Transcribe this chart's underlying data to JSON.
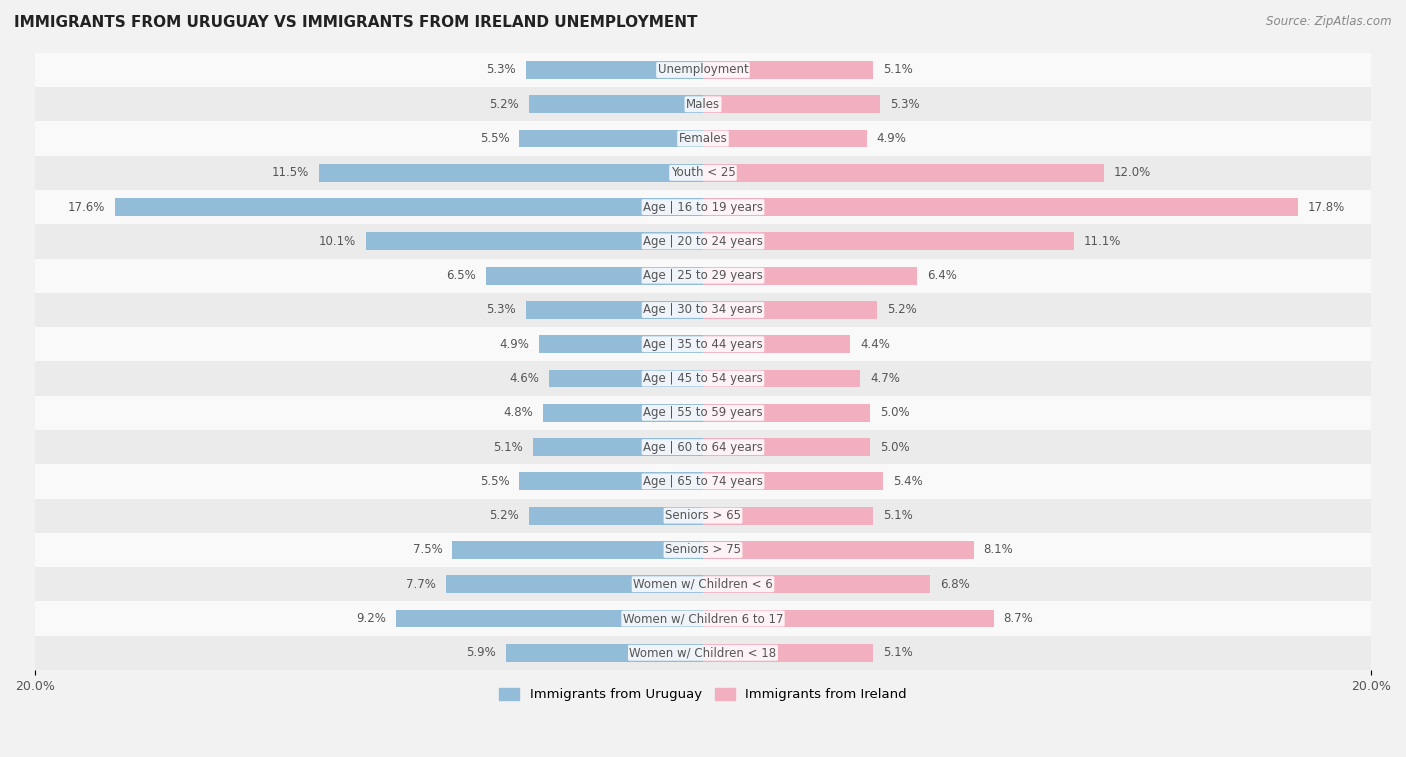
{
  "title": "IMMIGRANTS FROM URUGUAY VS IMMIGRANTS FROM IRELAND UNEMPLOYMENT",
  "source": "Source: ZipAtlas.com",
  "categories": [
    "Unemployment",
    "Males",
    "Females",
    "Youth < 25",
    "Age | 16 to 19 years",
    "Age | 20 to 24 years",
    "Age | 25 to 29 years",
    "Age | 30 to 34 years",
    "Age | 35 to 44 years",
    "Age | 45 to 54 years",
    "Age | 55 to 59 years",
    "Age | 60 to 64 years",
    "Age | 65 to 74 years",
    "Seniors > 65",
    "Seniors > 75",
    "Women w/ Children < 6",
    "Women w/ Children 6 to 17",
    "Women w/ Children < 18"
  ],
  "uruguay_values": [
    5.3,
    5.2,
    5.5,
    11.5,
    17.6,
    10.1,
    6.5,
    5.3,
    4.9,
    4.6,
    4.8,
    5.1,
    5.5,
    5.2,
    7.5,
    7.7,
    9.2,
    5.9
  ],
  "ireland_values": [
    5.1,
    5.3,
    4.9,
    12.0,
    17.8,
    11.1,
    6.4,
    5.2,
    4.4,
    4.7,
    5.0,
    5.0,
    5.4,
    5.1,
    8.1,
    6.8,
    8.7,
    5.1
  ],
  "uruguay_color": "#92bcd8",
  "ireland_color": "#f2afc0",
  "bar_height": 0.52,
  "xlim": 20.0,
  "background_color": "#f2f2f2",
  "row_color_light": "#f9f9f9",
  "row_color_dark": "#ebebeb",
  "legend_uruguay": "Immigrants from Uruguay",
  "legend_ireland": "Immigrants from Ireland",
  "label_color": "#555555",
  "title_color": "#222222",
  "source_color": "#888888"
}
